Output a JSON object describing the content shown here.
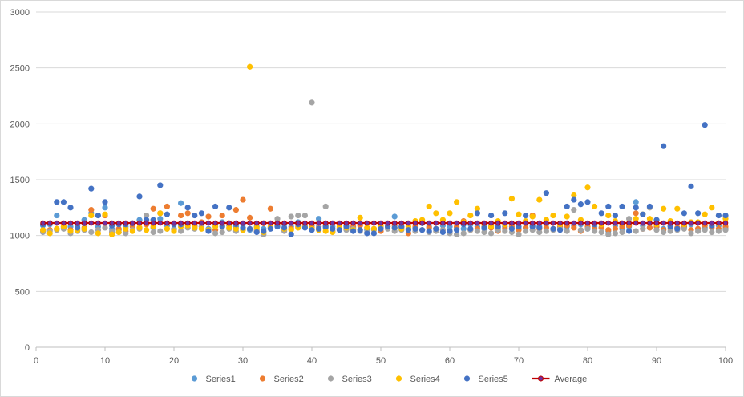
{
  "chart_data": {
    "type": "scatter",
    "title": "",
    "xlabel": "",
    "ylabel": "",
    "xlim": [
      0,
      100
    ],
    "ylim": [
      0,
      3000
    ],
    "x_ticks": [
      0,
      10,
      20,
      30,
      40,
      50,
      60,
      70,
      80,
      90,
      100
    ],
    "y_ticks": [
      0,
      500,
      1000,
      1500,
      2000,
      2500,
      3000
    ],
    "grid": "horizontal",
    "legend_position": "bottom",
    "x": [
      1,
      2,
      3,
      4,
      5,
      6,
      7,
      8,
      9,
      10,
      11,
      12,
      13,
      14,
      15,
      16,
      17,
      18,
      19,
      20,
      21,
      22,
      23,
      24,
      25,
      26,
      27,
      28,
      29,
      30,
      31,
      32,
      33,
      34,
      35,
      36,
      37,
      38,
      39,
      40,
      41,
      42,
      43,
      44,
      45,
      46,
      47,
      48,
      49,
      50,
      51,
      52,
      53,
      54,
      55,
      56,
      57,
      58,
      59,
      60,
      61,
      62,
      63,
      64,
      65,
      66,
      67,
      68,
      69,
      70,
      71,
      72,
      73,
      74,
      75,
      76,
      77,
      78,
      79,
      80,
      81,
      82,
      83,
      84,
      85,
      86,
      87,
      88,
      89,
      90,
      91,
      92,
      93,
      94,
      95,
      96,
      97,
      98,
      99,
      100
    ],
    "series": [
      {
        "name": "Series1",
        "color": "#5B9BD5",
        "values": [
          1090,
          1100,
          1180,
          1070,
          1080,
          1090,
          1140,
          1200,
          1080,
          1250,
          1060,
          1050,
          1080,
          1090,
          1140,
          1100,
          1070,
          1150,
          1090,
          1060,
          1290,
          1110,
          1090,
          1080,
          1060,
          1100,
          1120,
          1090,
          1080,
          1100,
          1050,
          1080,
          1060,
          1070,
          1090,
          1100,
          1080,
          1120,
          1080,
          1090,
          1150,
          1070,
          1080,
          1060,
          1090,
          1070,
          1100,
          1050,
          1060,
          1080,
          1090,
          1170,
          1080,
          1060,
          1070,
          1110,
          1080,
          1060,
          1090,
          1080,
          1070,
          1060,
          1100,
          1080,
          1060,
          1090,
          1070,
          1080,
          1100,
          1060,
          1070,
          1090,
          1080,
          1100,
          1060,
          1070,
          1080,
          1090,
          1100,
          1060,
          1080,
          1070,
          1040,
          1090,
          1060,
          1080,
          1300,
          1090,
          1070,
          1080,
          1060,
          1090,
          1070,
          1080,
          1100,
          1060,
          1070,
          1080,
          1090,
          1060
        ]
      },
      {
        "name": "Series2",
        "color": "#ED7D31",
        "values": [
          1040,
          1050,
          1060,
          1080,
          1050,
          1060,
          1070,
          1230,
          1050,
          1180,
          1030,
          1060,
          1040,
          1080,
          1070,
          1100,
          1240,
          1200,
          1260,
          1050,
          1180,
          1200,
          1080,
          1120,
          1170,
          1050,
          1180,
          1110,
          1230,
          1320,
          1160,
          1040,
          1110,
          1240,
          1100,
          1050,
          1060,
          1080,
          1090,
          1070,
          1080,
          1090,
          1040,
          1100,
          1060,
          1080,
          1090,
          1070,
          1060,
          1040,
          1080,
          1090,
          1070,
          1020,
          1080,
          1130,
          1070,
          1060,
          1050,
          1040,
          1080,
          1130,
          1050,
          1060,
          1080,
          1070,
          1040,
          1060,
          1080,
          1050,
          1070,
          1180,
          1060,
          1070,
          1060,
          1080,
          1090,
          1070,
          1040,
          1080,
          1060,
          1070,
          1050,
          1060,
          1080,
          1090,
          1200,
          1060,
          1070,
          1080,
          1050,
          1060,
          1070,
          1080,
          1050,
          1060,
          1090,
          1070,
          1060,
          1080
        ]
      },
      {
        "name": "Series3",
        "color": "#A5A5A5",
        "values": [
          1030,
          1040,
          1050,
          1060,
          1020,
          1040,
          1050,
          1030,
          1050,
          1070,
          1040,
          1030,
          1020,
          1050,
          1060,
          1180,
          1030,
          1040,
          1060,
          1050,
          1040,
          1070,
          1060,
          1080,
          1050,
          1020,
          1030,
          1060,
          1040,
          1050,
          1060,
          1050,
          1010,
          1070,
          1150,
          1040,
          1170,
          1180,
          1180,
          2190,
          1080,
          1260,
          1040,
          1070,
          1050,
          1060,
          1040,
          1030,
          1050,
          1070,
          1060,
          1040,
          1050,
          1060,
          1040,
          1050,
          1030,
          1040,
          1050,
          1020,
          1010,
          1020,
          1050,
          1040,
          1030,
          1020,
          1050,
          1040,
          1030,
          1010,
          1040,
          1050,
          1030,
          1040,
          1050,
          1060,
          1040,
          1230,
          1050,
          1060,
          1040,
          1030,
          1010,
          1020,
          1030,
          1150,
          1040,
          1060,
          1250,
          1050,
          1030,
          1040,
          1050,
          1060,
          1020,
          1040,
          1050,
          1030,
          1040,
          1050
        ]
      },
      {
        "name": "Series4",
        "color": "#FFC000",
        "values": [
          1050,
          1020,
          1060,
          1080,
          1040,
          1050,
          1060,
          1180,
          1020,
          1190,
          1010,
          1030,
          1060,
          1040,
          1070,
          1050,
          1080,
          1200,
          1060,
          1040,
          1080,
          1090,
          1070,
          1060,
          1050,
          1080,
          1090,
          1070,
          1060,
          1050,
          2510,
          1070,
          1030,
          1080,
          1090,
          1060,
          1050,
          1070,
          1080,
          1060,
          1050,
          1040,
          1030,
          1080,
          1070,
          1050,
          1160,
          1070,
          1060,
          1090,
          1080,
          1070,
          1060,
          1080,
          1130,
          1140,
          1260,
          1200,
          1140,
          1200,
          1300,
          1120,
          1180,
          1240,
          1100,
          1080,
          1130,
          1100,
          1330,
          1190,
          1130,
          1170,
          1320,
          1140,
          1180,
          1100,
          1170,
          1360,
          1140,
          1430,
          1260,
          1100,
          1180,
          1130,
          1110,
          1110,
          1150,
          1190,
          1150,
          1100,
          1240,
          1130,
          1240,
          1100,
          1120,
          1120,
          1190,
          1250,
          1110,
          1150
        ]
      },
      {
        "name": "Series5",
        "color": "#4472C4",
        "values": [
          1100,
          1110,
          1300,
          1300,
          1250,
          1070,
          1110,
          1420,
          1180,
          1300,
          1090,
          1100,
          1100,
          1110,
          1350,
          1140,
          1140,
          1450,
          1190,
          1100,
          1100,
          1250,
          1180,
          1200,
          1040,
          1260,
          1080,
          1250,
          1100,
          1070,
          1060,
          1030,
          1040,
          1060,
          1080,
          1070,
          1010,
          1100,
          1070,
          1050,
          1060,
          1080,
          1060,
          1050,
          1080,
          1040,
          1050,
          1020,
          1020,
          1060,
          1080,
          1070,
          1080,
          1050,
          1060,
          1050,
          1040,
          1060,
          1030,
          1040,
          1050,
          1100,
          1060,
          1200,
          1070,
          1180,
          1080,
          1200,
          1060,
          1080,
          1180,
          1080,
          1070,
          1380,
          1060,
          1050,
          1260,
          1320,
          1280,
          1300,
          1100,
          1200,
          1260,
          1180,
          1260,
          1040,
          1250,
          1190,
          1260,
          1140,
          1800,
          1080,
          1060,
          1200,
          1440,
          1200,
          1990,
          1090,
          1180,
          1180
        ]
      },
      {
        "name": "Average",
        "color": "#C00000",
        "type": "line",
        "values": [
          1112,
          1112,
          1112,
          1112,
          1112,
          1112,
          1112,
          1112,
          1112,
          1112,
          1112,
          1112,
          1112,
          1112,
          1112,
          1112,
          1112,
          1112,
          1112,
          1112,
          1112,
          1112,
          1112,
          1112,
          1112,
          1112,
          1112,
          1112,
          1112,
          1112,
          1112,
          1112,
          1112,
          1112,
          1112,
          1112,
          1112,
          1112,
          1112,
          1112,
          1112,
          1112,
          1112,
          1112,
          1112,
          1112,
          1112,
          1112,
          1112,
          1112,
          1112,
          1112,
          1112,
          1112,
          1112,
          1112,
          1112,
          1112,
          1112,
          1112,
          1112,
          1112,
          1112,
          1112,
          1112,
          1112,
          1112,
          1112,
          1112,
          1112,
          1112,
          1112,
          1112,
          1112,
          1112,
          1112,
          1112,
          1112,
          1112,
          1112,
          1112,
          1112,
          1112,
          1112,
          1112,
          1112,
          1112,
          1112,
          1112,
          1112,
          1112,
          1112,
          1112,
          1112,
          1112,
          1112,
          1112,
          1112,
          1112,
          1112
        ]
      }
    ]
  },
  "colors": {
    "grid": "#d9d9d9",
    "axis": "#bfbfbf",
    "text": "#595959",
    "average_marker": "#7030A0"
  }
}
